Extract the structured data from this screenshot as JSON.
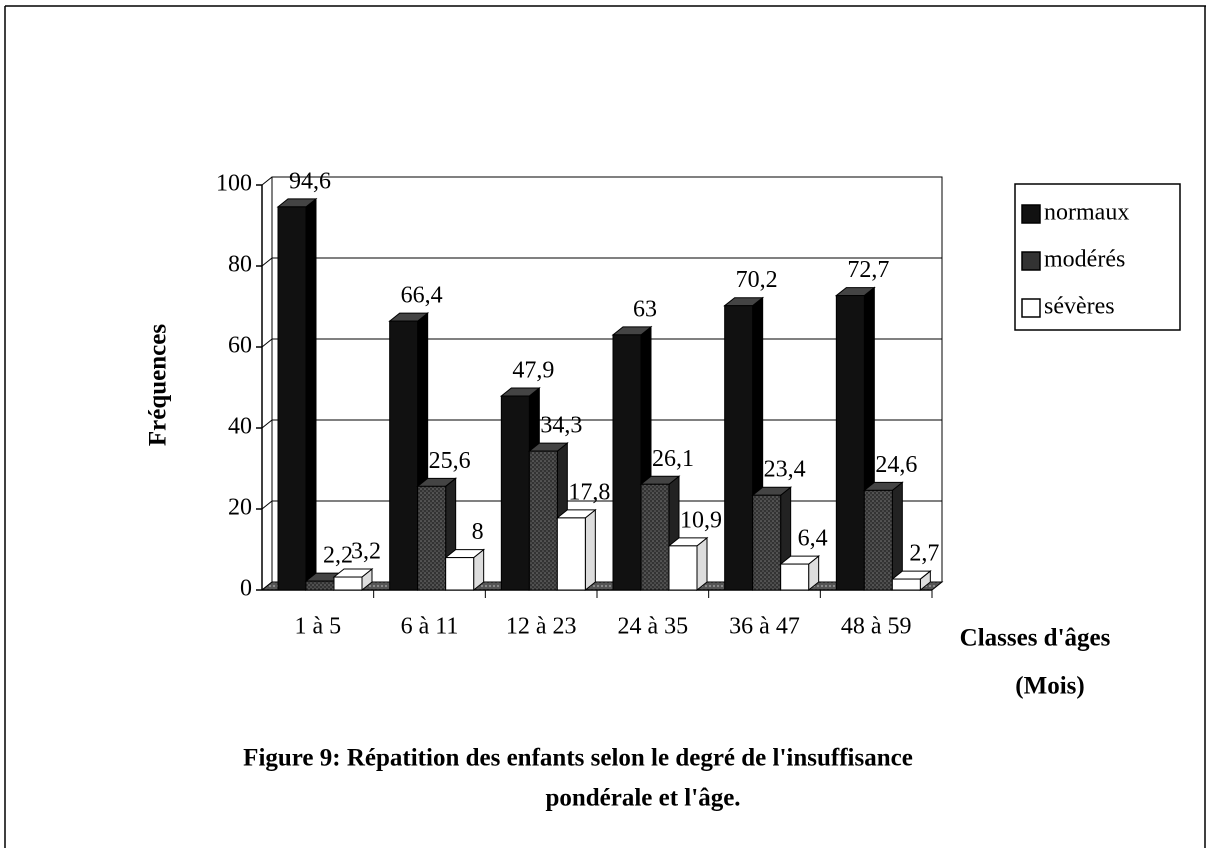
{
  "chart_data": {
    "type": "bar3d",
    "caption": [
      "Figure 9: Répatition des enfants selon le degré de l'insuffisance",
      "pondérale et l'âge."
    ],
    "ylabel": "Fréquences",
    "xlabel": [
      "Classes d'âges",
      "(Mois)"
    ],
    "categories": [
      "1 à 5",
      "6 à 11",
      "12 à 23",
      "24 à 35",
      "36 à 47",
      "48 à 59"
    ],
    "series": [
      {
        "name": "normaux",
        "color": "#111111",
        "values": [
          94.6,
          66.4,
          47.9,
          63,
          70.2,
          72.7
        ],
        "value_labels": [
          "94,6",
          "66,4",
          "47,9",
          "63",
          "70,2",
          "72,7"
        ]
      },
      {
        "name": "modérés",
        "color": "#333333",
        "values": [
          2.2,
          25.6,
          34.3,
          26.1,
          23.4,
          24.6
        ],
        "value_labels": [
          "2,2",
          "25,6",
          "34,3",
          "26,1",
          "23,4",
          "24,6"
        ]
      },
      {
        "name": "sévères",
        "color": "#ffffff",
        "values": [
          3.2,
          8,
          17.8,
          10.9,
          6.4,
          2.7
        ],
        "value_labels": [
          "3,2",
          "8",
          "17,8",
          "10,9",
          "6,4",
          "2,7"
        ]
      }
    ],
    "ylim": [
      0,
      100
    ],
    "yticks": [
      0,
      20,
      40,
      60,
      80,
      100
    ],
    "grid": true,
    "legend": "right"
  }
}
